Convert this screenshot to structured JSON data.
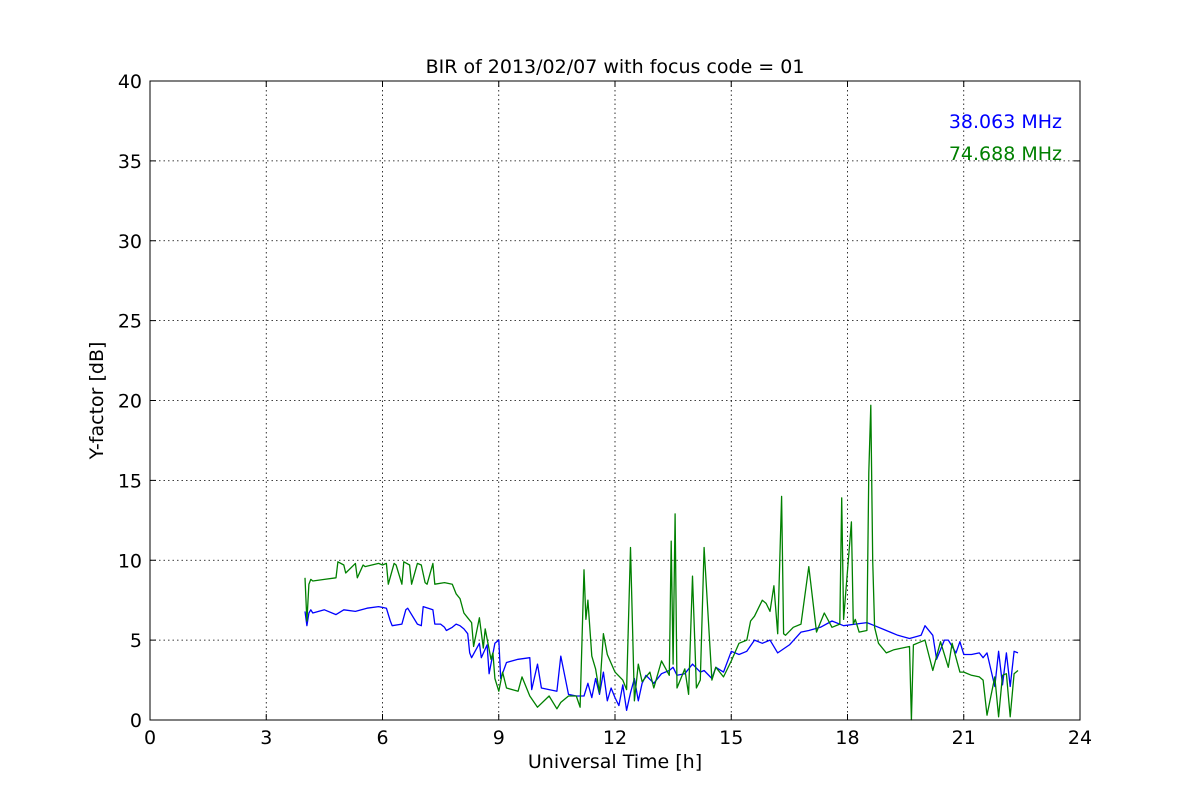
{
  "chart_data": {
    "type": "line",
    "title": "BIR of 2013/02/07 with focus code = 01",
    "xlabel": "Universal Time [h]",
    "ylabel": "Y-factor [dB]",
    "xlim": [
      0,
      24
    ],
    "ylim": [
      0,
      40
    ],
    "xticks": [
      0,
      3,
      6,
      9,
      12,
      15,
      18,
      21,
      24
    ],
    "yticks": [
      0,
      5,
      10,
      15,
      20,
      25,
      30,
      35,
      40
    ],
    "grid": true,
    "legend_placement": "top-right",
    "series": [
      {
        "name": "38.063 MHz",
        "color": "#0000ff",
        "x": [
          4.0,
          4.05,
          4.1,
          4.15,
          4.2,
          4.5,
          4.8,
          5.0,
          5.3,
          5.6,
          5.9,
          6.1,
          6.2,
          6.25,
          6.5,
          6.6,
          6.65,
          6.9,
          7.0,
          7.05,
          7.3,
          7.35,
          7.5,
          7.6,
          7.65,
          7.8,
          7.9,
          8.0,
          8.1,
          8.2,
          8.25,
          8.3,
          8.5,
          8.55,
          8.7,
          8.75,
          8.9,
          9.0,
          9.05,
          9.2,
          9.5,
          9.8,
          9.85,
          10.0,
          10.1,
          10.3,
          10.5,
          10.6,
          10.8,
          11.0,
          11.2,
          11.3,
          11.4,
          11.5,
          11.6,
          11.7,
          11.8,
          11.9,
          12.0,
          12.1,
          12.2,
          12.3,
          12.4,
          12.5,
          12.6,
          12.7,
          12.8,
          13.0,
          13.2,
          13.4,
          13.5,
          13.6,
          13.8,
          14.0,
          14.2,
          14.3,
          14.5,
          14.6,
          14.8,
          15.0,
          15.2,
          15.4,
          15.6,
          15.8,
          16.0,
          16.2,
          16.5,
          16.8,
          17.0,
          17.3,
          17.6,
          17.9,
          18.2,
          18.5,
          18.7,
          19.0,
          19.3,
          19.6,
          19.9,
          20.0,
          20.2,
          20.3,
          20.5,
          20.6,
          20.8,
          20.9,
          21.0,
          21.2,
          21.4,
          21.5,
          21.6,
          21.8,
          21.9,
          22.0,
          22.1,
          22.2,
          22.3,
          22.4
        ],
        "y": [
          6.8,
          5.9,
          6.7,
          6.9,
          6.7,
          6.9,
          6.6,
          6.9,
          6.8,
          7.0,
          7.1,
          7.0,
          6.2,
          5.9,
          6.0,
          6.9,
          7.0,
          6.0,
          5.9,
          7.1,
          6.9,
          6.0,
          6.0,
          5.8,
          5.6,
          5.8,
          6.0,
          5.9,
          5.7,
          5.4,
          4.2,
          3.9,
          4.8,
          3.9,
          4.7,
          2.9,
          4.8,
          5.0,
          2.6,
          3.6,
          3.8,
          3.9,
          1.9,
          3.5,
          2.0,
          1.9,
          1.8,
          4.0,
          1.6,
          1.5,
          1.5,
          2.3,
          1.4,
          2.6,
          1.6,
          3.0,
          1.2,
          2.0,
          1.4,
          0.9,
          2.2,
          0.6,
          1.7,
          2.6,
          1.2,
          2.3,
          2.8,
          2.3,
          2.9,
          3.1,
          3.3,
          2.8,
          2.9,
          3.5,
          3.0,
          3.1,
          2.6,
          3.3,
          3.0,
          4.3,
          4.1,
          4.3,
          5.0,
          4.8,
          5.0,
          4.2,
          4.7,
          5.5,
          5.6,
          5.8,
          6.2,
          5.9,
          6.0,
          6.1,
          5.9,
          5.6,
          5.3,
          5.1,
          5.3,
          5.9,
          5.3,
          3.8,
          5.0,
          5.0,
          4.2,
          4.9,
          4.1,
          4.1,
          4.2,
          3.9,
          4.2,
          2.1,
          4.3,
          2.2,
          4.2,
          2.1,
          4.3,
          4.2
        ]
      },
      {
        "name": "74.688 MHz",
        "color": "#008000",
        "x": [
          4.0,
          4.05,
          4.1,
          4.15,
          4.2,
          4.5,
          4.8,
          4.85,
          5.0,
          5.05,
          5.3,
          5.35,
          5.5,
          5.55,
          5.9,
          6.0,
          6.1,
          6.15,
          6.3,
          6.35,
          6.5,
          6.55,
          6.7,
          6.75,
          6.9,
          7.0,
          7.1,
          7.15,
          7.3,
          7.35,
          7.6,
          7.8,
          7.9,
          8.0,
          8.1,
          8.2,
          8.3,
          8.35,
          8.5,
          8.6,
          8.65,
          8.8,
          8.85,
          8.9,
          9.0,
          9.1,
          9.2,
          9.5,
          9.6,
          9.8,
          10.0,
          10.3,
          10.5,
          10.6,
          10.8,
          11.0,
          11.1,
          11.2,
          11.25,
          11.3,
          11.4,
          11.5,
          11.6,
          11.7,
          11.8,
          12.0,
          12.2,
          12.3,
          12.4,
          12.5,
          12.6,
          12.7,
          12.9,
          13.0,
          13.2,
          13.4,
          13.45,
          13.5,
          13.55,
          13.6,
          13.8,
          13.9,
          14.0,
          14.1,
          14.2,
          14.3,
          14.5,
          14.6,
          14.8,
          15.0,
          15.2,
          15.4,
          15.5,
          15.6,
          15.8,
          15.9,
          16.0,
          16.1,
          16.2,
          16.3,
          16.35,
          16.4,
          16.6,
          16.8,
          17.0,
          17.2,
          17.4,
          17.6,
          17.8,
          17.85,
          17.9,
          18.1,
          18.15,
          18.2,
          18.3,
          18.5,
          18.55,
          18.6,
          18.65,
          18.7,
          18.8,
          19.0,
          19.2,
          19.4,
          19.6,
          19.65,
          19.7,
          19.9,
          20.0,
          20.2,
          20.4,
          20.6,
          20.7,
          20.9,
          21.0,
          21.2,
          21.4,
          21.5,
          21.6,
          21.8,
          21.9,
          22.0,
          22.1,
          22.2,
          22.3,
          22.4
        ],
        "y": [
          8.9,
          6.2,
          8.5,
          8.8,
          8.7,
          8.8,
          8.9,
          9.9,
          9.7,
          9.2,
          9.8,
          8.9,
          9.7,
          9.6,
          9.8,
          9.7,
          9.8,
          8.5,
          9.8,
          9.7,
          8.5,
          9.9,
          9.7,
          8.5,
          9.8,
          9.7,
          8.6,
          8.5,
          9.8,
          8.5,
          8.6,
          8.5,
          7.9,
          7.6,
          6.7,
          6.4,
          6.1,
          4.6,
          6.4,
          4.5,
          5.7,
          3.8,
          4.2,
          2.6,
          1.8,
          3.0,
          2.0,
          1.8,
          2.7,
          1.5,
          0.8,
          1.5,
          0.7,
          1.1,
          1.5,
          1.5,
          0.8,
          9.4,
          6.3,
          7.5,
          4.0,
          3.2,
          1.7,
          5.4,
          4.1,
          3.0,
          2.5,
          1.9,
          10.8,
          1.2,
          3.5,
          2.4,
          3.0,
          2.0,
          3.7,
          2.8,
          11.2,
          3.5,
          12.9,
          2.0,
          3.2,
          1.6,
          9.0,
          2.0,
          2.5,
          10.8,
          2.5,
          3.3,
          2.7,
          3.7,
          4.8,
          5.0,
          6.2,
          6.5,
          7.5,
          7.3,
          6.8,
          8.4,
          5.4,
          14.0,
          5.4,
          5.3,
          5.8,
          6.0,
          9.6,
          5.5,
          6.7,
          5.8,
          6.0,
          13.9,
          6.3,
          12.4,
          6.0,
          6.3,
          5.5,
          5.6,
          15.5,
          19.7,
          10.0,
          5.8,
          4.8,
          4.2,
          4.4,
          4.5,
          4.6,
          0.0,
          4.7,
          4.9,
          5.0,
          3.1,
          4.9,
          3.3,
          4.8,
          3.0,
          3.0,
          2.8,
          2.7,
          2.5,
          0.3,
          2.7,
          0.2,
          2.8,
          2.9,
          0.2,
          2.9,
          3.1
        ]
      }
    ]
  }
}
